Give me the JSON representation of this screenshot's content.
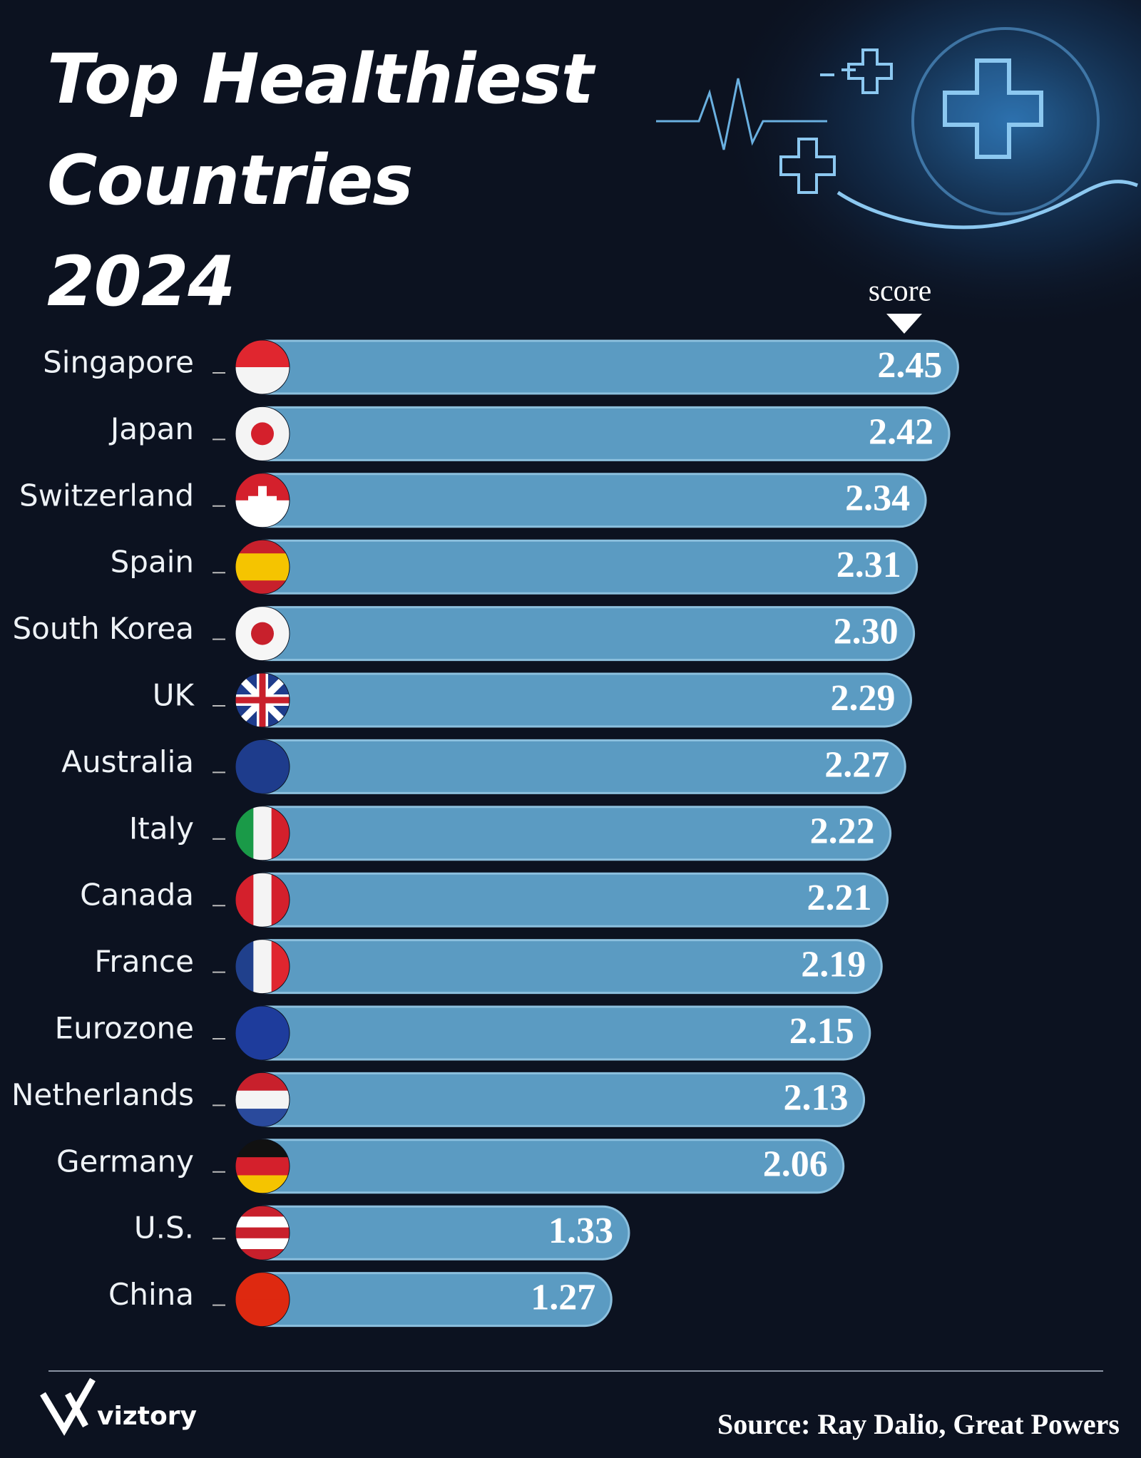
{
  "chart_data": {
    "type": "bar",
    "orientation": "horizontal",
    "title": "Top Healthiest Countries 2024",
    "value_axis_label": "score",
    "categories": [
      "Singapore",
      "Japan",
      "Switzerland",
      "Spain",
      "South Korea",
      "UK",
      "Australia",
      "Italy",
      "Canada",
      "France",
      "Eurozone",
      "Netherlands",
      "Germany",
      "U.S.",
      "China"
    ],
    "values": [
      2.45,
      2.42,
      2.34,
      2.31,
      2.3,
      2.29,
      2.27,
      2.22,
      2.21,
      2.19,
      2.15,
      2.13,
      2.06,
      1.33,
      1.27
    ],
    "value_labels": [
      "2.45",
      "2.42",
      "2.34",
      "2.31",
      "2.30",
      "2.29",
      "2.27",
      "2.22",
      "2.21",
      "2.19",
      "2.15",
      "2.13",
      "2.06",
      "1.33",
      "1.27"
    ],
    "color": "#5b9bc2",
    "xlim": [
      0,
      3
    ],
    "source": "Source: Ray Dalio, Great Powers",
    "brand": "viztory"
  }
}
